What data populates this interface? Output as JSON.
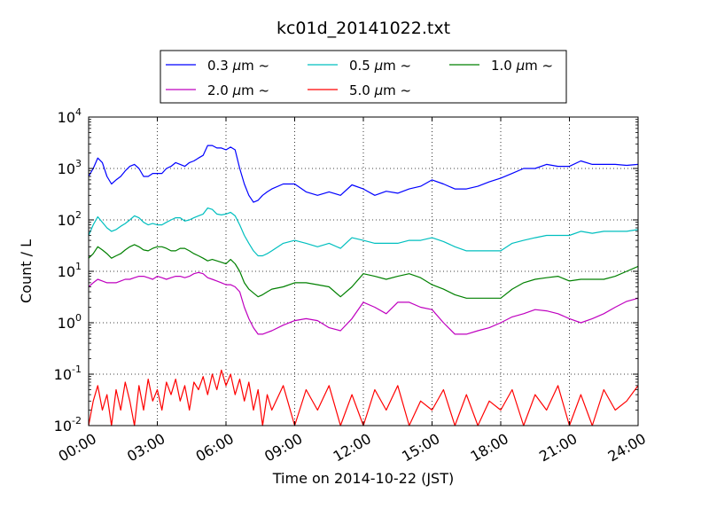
{
  "chart_data": {
    "type": "line",
    "title": "kc01d_20141022.txt",
    "xlabel": "Time on 2014-10-22 (JST)",
    "ylabel": "Count / L",
    "x_unit": "hours",
    "xlim": [
      0,
      24
    ],
    "ylim": [
      0.01,
      10000
    ],
    "yscale": "log",
    "grid": true,
    "legend_position": "top-center",
    "x_ticks": [
      {
        "value": 0,
        "label": "00:00"
      },
      {
        "value": 3,
        "label": "03:00"
      },
      {
        "value": 6,
        "label": "06:00"
      },
      {
        "value": 9,
        "label": "09:00"
      },
      {
        "value": 12,
        "label": "12:00"
      },
      {
        "value": 15,
        "label": "15:00"
      },
      {
        "value": 18,
        "label": "18:00"
      },
      {
        "value": 21,
        "label": "21:00"
      },
      {
        "value": 24,
        "label": "24:00"
      }
    ],
    "y_ticks": [
      {
        "value": 0.01,
        "base": "10",
        "exp": "-2"
      },
      {
        "value": 0.1,
        "base": "10",
        "exp": "-1"
      },
      {
        "value": 1,
        "base": "10",
        "exp": "0"
      },
      {
        "value": 10,
        "base": "10",
        "exp": "1"
      },
      {
        "value": 100,
        "base": "10",
        "exp": "2"
      },
      {
        "value": 1000,
        "base": "10",
        "exp": "3"
      },
      {
        "value": 10000,
        "base": "10",
        "exp": "4"
      }
    ],
    "series": [
      {
        "name": "0.3 μm ~",
        "name_value": "0.3",
        "name_unit": "μm",
        "name_suffix": "~",
        "color": "#0000ff",
        "x": [
          0,
          0.2,
          0.4,
          0.6,
          0.8,
          1,
          1.2,
          1.4,
          1.6,
          1.8,
          2,
          2.2,
          2.4,
          2.6,
          2.8,
          3,
          3.2,
          3.4,
          3.6,
          3.8,
          4,
          4.2,
          4.4,
          4.6,
          4.8,
          5,
          5.2,
          5.4,
          5.6,
          5.8,
          6,
          6.2,
          6.4,
          6.6,
          6.8,
          7,
          7.2,
          7.4,
          7.6,
          7.8,
          8,
          8.5,
          9,
          9.5,
          10,
          10.5,
          11,
          11.5,
          12,
          12.5,
          13,
          13.5,
          14,
          14.5,
          15,
          15.5,
          16,
          16.5,
          17,
          17.5,
          18,
          18.5,
          19,
          19.5,
          20,
          20.5,
          21,
          21.5,
          22,
          22.5,
          23,
          23.5,
          24
        ],
        "y": [
          700,
          1000,
          1600,
          1300,
          700,
          500,
          600,
          700,
          900,
          1100,
          1200,
          1000,
          700,
          700,
          800,
          800,
          800,
          1000,
          1100,
          1300,
          1200,
          1100,
          1300,
          1400,
          1600,
          1800,
          2800,
          2800,
          2500,
          2500,
          2300,
          2600,
          2300,
          1000,
          500,
          300,
          220,
          240,
          300,
          350,
          400,
          500,
          500,
          350,
          300,
          350,
          300,
          480,
          400,
          300,
          360,
          330,
          400,
          450,
          600,
          500,
          400,
          400,
          450,
          550,
          650,
          800,
          1000,
          1000,
          1200,
          1100,
          1100,
          1400,
          1200,
          1200,
          1200,
          1150,
          1200
        ]
      },
      {
        "name": "0.5 μm ~",
        "name_value": "0.5",
        "name_unit": "μm",
        "name_suffix": "~",
        "color": "#00bfbf",
        "x": [
          0,
          0.2,
          0.4,
          0.6,
          0.8,
          1,
          1.2,
          1.4,
          1.6,
          1.8,
          2,
          2.2,
          2.4,
          2.6,
          2.8,
          3,
          3.2,
          3.4,
          3.6,
          3.8,
          4,
          4.2,
          4.4,
          4.6,
          4.8,
          5,
          5.2,
          5.4,
          5.6,
          5.8,
          6,
          6.2,
          6.4,
          6.6,
          6.8,
          7,
          7.2,
          7.4,
          7.6,
          7.8,
          8,
          8.5,
          9,
          9.5,
          10,
          10.5,
          11,
          11.5,
          12,
          12.5,
          13,
          13.5,
          14,
          14.5,
          15,
          15.5,
          16,
          16.5,
          17,
          17.5,
          18,
          18.5,
          19,
          19.5,
          20,
          20.5,
          21,
          21.5,
          22,
          22.5,
          23,
          23.5,
          24
        ],
        "y": [
          50,
          80,
          115,
          90,
          70,
          60,
          65,
          75,
          85,
          100,
          120,
          110,
          90,
          80,
          85,
          80,
          80,
          90,
          100,
          110,
          110,
          95,
          100,
          110,
          120,
          130,
          170,
          160,
          130,
          125,
          130,
          140,
          120,
          80,
          50,
          35,
          25,
          20,
          20,
          22,
          25,
          35,
          40,
          35,
          30,
          35,
          28,
          45,
          40,
          35,
          35,
          35,
          40,
          40,
          45,
          38,
          30,
          25,
          25,
          25,
          25,
          35,
          40,
          45,
          50,
          50,
          50,
          60,
          55,
          60,
          60,
          60,
          65
        ]
      },
      {
        "name": "1.0 μm ~",
        "name_value": "1.0",
        "name_unit": "μm",
        "name_suffix": "~",
        "color": "#008000",
        "x": [
          0,
          0.2,
          0.4,
          0.6,
          0.8,
          1,
          1.2,
          1.4,
          1.6,
          1.8,
          2,
          2.2,
          2.4,
          2.6,
          2.8,
          3,
          3.2,
          3.4,
          3.6,
          3.8,
          4,
          4.2,
          4.4,
          4.6,
          4.8,
          5,
          5.2,
          5.4,
          5.6,
          5.8,
          6,
          6.2,
          6.4,
          6.6,
          6.8,
          7,
          7.2,
          7.4,
          7.6,
          7.8,
          8,
          8.5,
          9,
          9.5,
          10,
          10.5,
          11,
          11.5,
          12,
          12.5,
          13,
          13.5,
          14,
          14.5,
          15,
          15.5,
          16,
          16.5,
          17,
          17.5,
          18,
          18.5,
          19,
          19.5,
          20,
          20.5,
          21,
          21.5,
          22,
          22.5,
          23,
          23.5,
          24
        ],
        "y": [
          18,
          22,
          30,
          26,
          22,
          18,
          20,
          22,
          26,
          30,
          33,
          30,
          26,
          25,
          28,
          30,
          30,
          28,
          25,
          25,
          28,
          28,
          25,
          22,
          20,
          18,
          16,
          17,
          16,
          15,
          14,
          17,
          14,
          10,
          6,
          4.5,
          3.8,
          3.2,
          3.5,
          4,
          4.5,
          5,
          6,
          6,
          5.5,
          5,
          3.2,
          5,
          9,
          8,
          7,
          8,
          9,
          7.5,
          5.5,
          4.5,
          3.5,
          3,
          3,
          3,
          3,
          4.5,
          6,
          7,
          7.5,
          8,
          6.5,
          7,
          7,
          7,
          8,
          10,
          12.5
        ]
      },
      {
        "name": "2.0 μm ~",
        "name_value": "2.0",
        "name_unit": "μm",
        "name_suffix": "~",
        "color": "#bf00bf",
        "x": [
          0,
          0.2,
          0.4,
          0.6,
          0.8,
          1,
          1.2,
          1.4,
          1.6,
          1.8,
          2,
          2.2,
          2.4,
          2.6,
          2.8,
          3,
          3.2,
          3.4,
          3.6,
          3.8,
          4,
          4.2,
          4.4,
          4.6,
          4.8,
          5,
          5.2,
          5.4,
          5.6,
          5.8,
          6,
          6.2,
          6.4,
          6.6,
          6.8,
          7,
          7.2,
          7.4,
          7.6,
          7.8,
          8,
          8.5,
          9,
          9.5,
          10,
          10.5,
          11,
          11.5,
          12,
          12.5,
          13,
          13.5,
          14,
          14.5,
          15,
          15.5,
          16,
          16.5,
          17,
          17.5,
          18,
          18.5,
          19,
          19.5,
          20,
          20.5,
          21,
          21.5,
          22,
          22.5,
          23,
          23.5,
          24
        ],
        "y": [
          5,
          6,
          7,
          6.5,
          6,
          6,
          6,
          6.5,
          7,
          7,
          7.5,
          8,
          8,
          7.5,
          7,
          8,
          7.5,
          7,
          7.5,
          8,
          8,
          7.5,
          8,
          9,
          9.5,
          9,
          7.5,
          7,
          6.5,
          6,
          5.5,
          5.5,
          5,
          4,
          2,
          1.2,
          0.8,
          0.6,
          0.6,
          0.65,
          0.7,
          0.9,
          1.1,
          1.2,
          1.1,
          0.8,
          0.7,
          1.2,
          2.5,
          2,
          1.5,
          2.5,
          2.5,
          2,
          1.8,
          1,
          0.6,
          0.6,
          0.7,
          0.8,
          1,
          1.3,
          1.5,
          1.8,
          1.7,
          1.5,
          1.2,
          1,
          1.2,
          1.5,
          2,
          2.6,
          3
        ]
      },
      {
        "name": "5.0 μm ~",
        "name_value": "5.0",
        "name_unit": "μm",
        "name_suffix": "~",
        "color": "#ff0000",
        "x": [
          0,
          0.2,
          0.4,
          0.6,
          0.8,
          1,
          1.2,
          1.4,
          1.6,
          1.8,
          2,
          2.2,
          2.4,
          2.6,
          2.8,
          3,
          3.2,
          3.4,
          3.6,
          3.8,
          4,
          4.2,
          4.4,
          4.6,
          4.8,
          5,
          5.2,
          5.4,
          5.6,
          5.8,
          6,
          6.2,
          6.4,
          6.6,
          6.8,
          7,
          7.2,
          7.4,
          7.6,
          7.8,
          8,
          8.5,
          9,
          9.5,
          10,
          10.5,
          11,
          11.5,
          12,
          12.5,
          13,
          13.5,
          14,
          14.5,
          15,
          15.5,
          16,
          16.5,
          17,
          17.5,
          18,
          18.5,
          19,
          19.5,
          20,
          20.5,
          21,
          21.5,
          22,
          22.5,
          23,
          23.5,
          24
        ],
        "y": [
          0.01,
          0.03,
          0.06,
          0.02,
          0.04,
          0.01,
          0.05,
          0.02,
          0.07,
          0.03,
          0.01,
          0.06,
          0.02,
          0.08,
          0.03,
          0.05,
          0.02,
          0.07,
          0.04,
          0.08,
          0.03,
          0.06,
          0.02,
          0.07,
          0.05,
          0.09,
          0.04,
          0.1,
          0.05,
          0.12,
          0.06,
          0.1,
          0.04,
          0.08,
          0.03,
          0.07,
          0.02,
          0.05,
          0.01,
          0.04,
          0.02,
          0.06,
          0.01,
          0.05,
          0.02,
          0.06,
          0.01,
          0.04,
          0.01,
          0.05,
          0.02,
          0.06,
          0.01,
          0.03,
          0.02,
          0.05,
          0.01,
          0.04,
          0.01,
          0.03,
          0.02,
          0.05,
          0.01,
          0.04,
          0.02,
          0.06,
          0.01,
          0.04,
          0.01,
          0.05,
          0.02,
          0.03,
          0.06
        ]
      }
    ]
  }
}
